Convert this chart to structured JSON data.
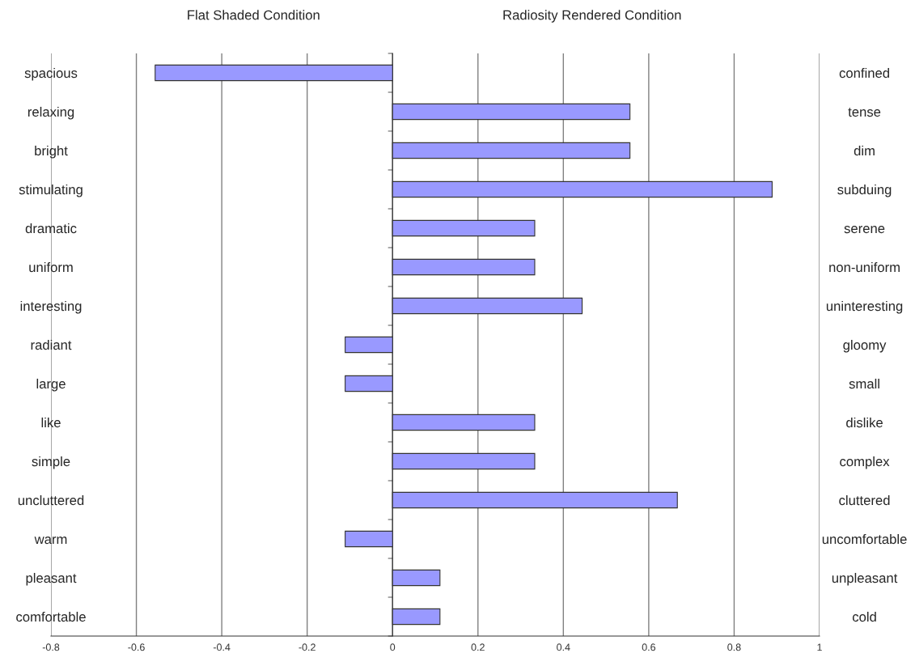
{
  "chart_data": {
    "type": "bar",
    "orientation": "horizontal",
    "categories": [
      "spacious",
      "relaxing",
      "bright",
      "stimulating",
      "dramatic",
      "uniform",
      "interesting",
      "radiant",
      "large",
      "like",
      "simple",
      "uncluttered",
      "warm",
      "pleasant",
      "comfortable"
    ],
    "y2_categories": [
      "confined",
      "tense",
      "dim",
      "subduing",
      "serene",
      "non-uniform",
      "uninteresting",
      "gloomy",
      "small",
      "dislike",
      "complex",
      "cluttered",
      "uncomfortable",
      "unpleasant",
      "cold"
    ],
    "values": [
      -0.556,
      0.556,
      0.556,
      0.889,
      0.333,
      0.333,
      0.444,
      -0.111,
      -0.111,
      0.333,
      0.333,
      0.667,
      -0.111,
      0.111,
      0.111
    ],
    "color": "#9999ff",
    "xlim": [
      -0.8,
      1
    ],
    "xticks": [
      -0.8,
      -0.6,
      -0.4,
      -0.2,
      0,
      0.2,
      0.4,
      0.6,
      0.8,
      1
    ],
    "grid": "x",
    "annotations": [
      "Flat Shaded Condition",
      "Radiosity Rendered Condition"
    ]
  }
}
